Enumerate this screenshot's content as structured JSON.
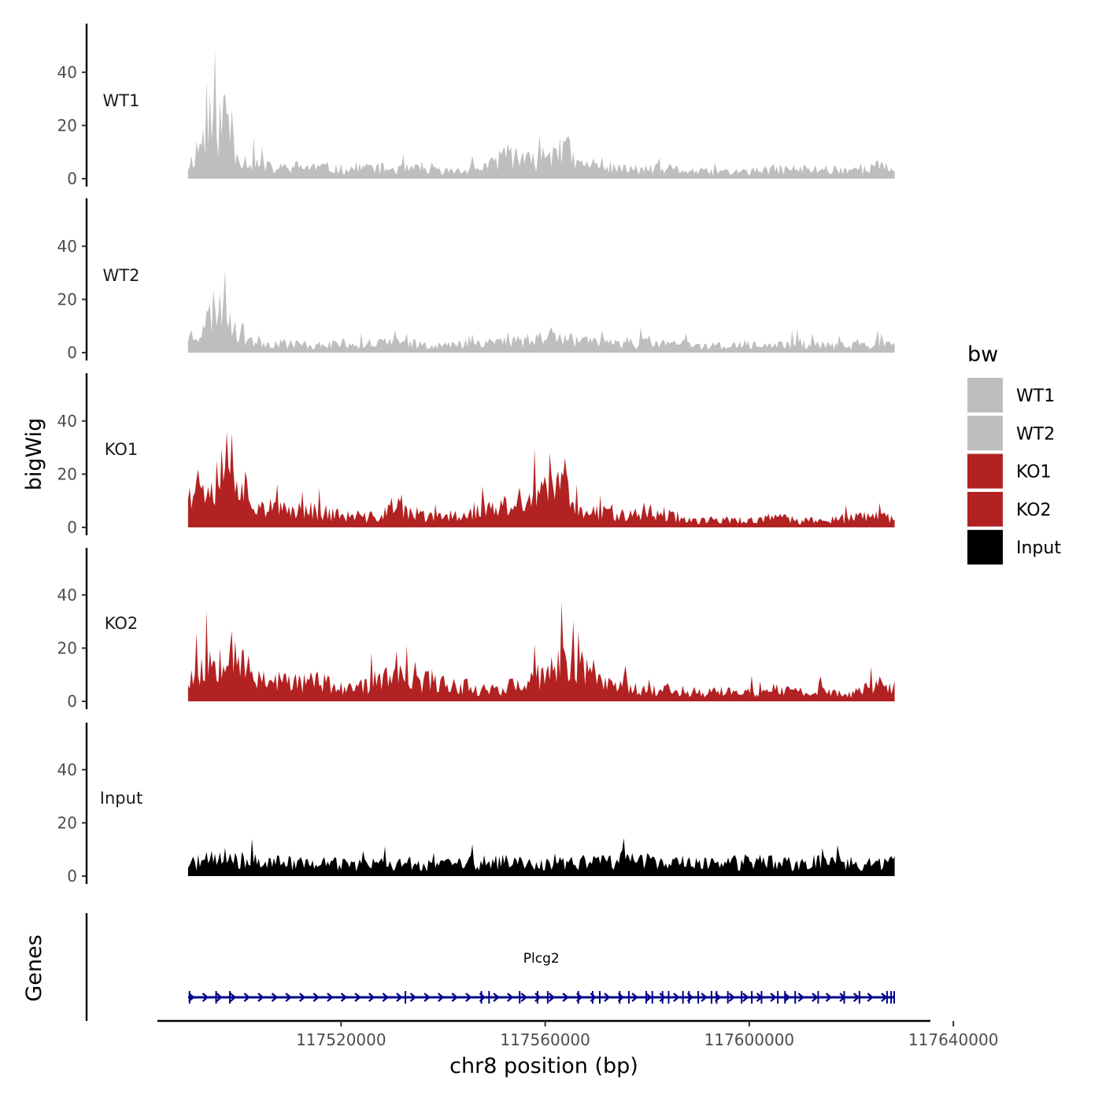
{
  "chart_data": {
    "type": "area",
    "title": "",
    "ylabel": "bigWig",
    "genes_label": "Genes",
    "xlabel": "chr8 position (bp)",
    "xlim": [
      117484000,
      117635500
    ],
    "region": [
      117490000,
      117628500
    ],
    "ylim": [
      0,
      55
    ],
    "yticks": [
      0,
      20,
      40
    ],
    "xticks": [
      117520000,
      117560000,
      117600000,
      117640000
    ],
    "xtick_labels": [
      "117520000",
      "117560000",
      "117600000",
      "117640000"
    ],
    "legend": {
      "title": "bw",
      "position": "right",
      "entries": [
        {
          "label": "WT1",
          "color": "#bebebe"
        },
        {
          "label": "WT2",
          "color": "#bebebe"
        },
        {
          "label": "KO1",
          "color": "#b22222"
        },
        {
          "label": "KO2",
          "color": "#b22222"
        },
        {
          "label": "Input",
          "color": "#000000"
        }
      ]
    },
    "series": [
      {
        "name": "WT1",
        "color": "#bebebe",
        "seed": 11,
        "x": [
          117490000,
          117493000,
          117496000,
          117497500,
          117499000,
          117501000,
          117504000,
          117507000,
          117510000,
          117515000,
          117520000,
          117525000,
          117530000,
          117535000,
          117540000,
          117545000,
          117550000,
          117552000,
          117555000,
          117558000,
          117561000,
          117564000,
          117566000,
          117570000,
          117575000,
          117580000,
          117585000,
          117590000,
          117595000,
          117600000,
          117605000,
          117610000,
          117615000,
          117620000,
          117625000,
          117628500
        ],
        "y": [
          5,
          18,
          22,
          30,
          14,
          8,
          6,
          4,
          5,
          5,
          4,
          5,
          4,
          4,
          3,
          4,
          6,
          12,
          8,
          7,
          12,
          14,
          6,
          6,
          4,
          4,
          4,
          3,
          3,
          3,
          4,
          4,
          4,
          4,
          5,
          4
        ]
      },
      {
        "name": "WT2",
        "color": "#bebebe",
        "seed": 23,
        "x": [
          117490000,
          117493000,
          117495000,
          117497000,
          117498500,
          117500000,
          117503000,
          117506000,
          117510000,
          117515000,
          117520000,
          117525000,
          117530000,
          117535000,
          117540000,
          117545000,
          117550000,
          117555000,
          117560000,
          117563000,
          117566000,
          117570000,
          117575000,
          117580000,
          117585000,
          117590000,
          117595000,
          117600000,
          117605000,
          117610000,
          117615000,
          117620000,
          117625000,
          117628500
        ],
        "y": [
          7,
          10,
          19,
          24,
          15,
          9,
          5,
          4,
          4,
          3,
          4,
          4,
          4,
          4,
          3,
          4,
          5,
          5,
          7,
          9,
          5,
          4,
          5,
          4,
          4,
          3,
          3,
          3,
          3,
          4,
          3,
          3,
          4,
          3
        ]
      },
      {
        "name": "KO1",
        "color": "#b22222",
        "seed": 37,
        "x": [
          117490000,
          117493000,
          117495000,
          117497000,
          117498000,
          117500000,
          117502000,
          117505000,
          117508000,
          117512000,
          117516000,
          117520000,
          117524000,
          117528000,
          117530000,
          117534000,
          117538000,
          117542000,
          117546000,
          117550000,
          117553000,
          117556000,
          117559000,
          117562000,
          117565000,
          117568000,
          117572000,
          117576000,
          117580000,
          117585000,
          117590000,
          117595000,
          117600000,
          117605000,
          117610000,
          117615000,
          117620000,
          117625000,
          117628500
        ],
        "y": [
          17,
          20,
          22,
          26,
          34,
          22,
          14,
          9,
          7,
          8,
          7,
          5,
          4,
          5,
          9,
          6,
          4,
          5,
          7,
          8,
          9,
          12,
          13,
          18,
          16,
          6,
          7,
          6,
          7,
          5,
          3,
          3,
          3,
          4,
          3,
          3,
          4,
          5,
          3
        ]
      },
      {
        "name": "KO2",
        "color": "#b22222",
        "seed": 53,
        "x": [
          117490000,
          117493000,
          117495000,
          117497000,
          117498000,
          117500000,
          117502000,
          117505000,
          117510000,
          117515000,
          117520000,
          117523000,
          117527000,
          117530000,
          117534000,
          117538000,
          117542000,
          117546000,
          117550000,
          117553000,
          117556000,
          117559000,
          117562000,
          117565000,
          117568000,
          117572000,
          117576000,
          117580000,
          117585000,
          117590000,
          117595000,
          117600000,
          117605000,
          117610000,
          117615000,
          117620000,
          117622000,
          117625000,
          117628500
        ],
        "y": [
          10,
          14,
          18,
          22,
          31,
          20,
          12,
          10,
          8,
          9,
          5,
          5,
          9,
          11,
          8,
          9,
          7,
          6,
          5,
          7,
          6,
          11,
          14,
          18,
          15,
          8,
          7,
          5,
          5,
          4,
          4,
          4,
          5,
          4,
          4,
          3,
          5,
          7,
          6
        ]
      },
      {
        "name": "Input",
        "color": "#000000",
        "seed": 71,
        "x": [
          117490000,
          117497000,
          117500000,
          117510000,
          117520000,
          117530000,
          117540000,
          117550000,
          117560000,
          117570000,
          117575000,
          117580000,
          117590000,
          117600000,
          117610000,
          117615000,
          117620000,
          117628500
        ],
        "y": [
          5,
          8,
          6,
          6,
          5,
          5,
          5,
          6,
          5,
          6,
          7,
          6,
          5,
          6,
          5,
          7,
          5,
          6
        ]
      }
    ],
    "genes": [
      {
        "name": "Plcg2",
        "start": 117490000,
        "end": 117628500,
        "strand": "+",
        "color": "#00008b",
        "exons": [
          117490300,
          117495500,
          117498200,
          117532600,
          117547500,
          117549000,
          117555000,
          117558500,
          117560500,
          117566500,
          117569300,
          117570700,
          117574600,
          117576400,
          117579800,
          117581000,
          117583000,
          117584200,
          117587000,
          117588200,
          117590000,
          117592600,
          117593600,
          117595800,
          117598500,
          117600500,
          117602400,
          117605600,
          117607000,
          117609000,
          117613500,
          117618600,
          117621600,
          117627000,
          117627800,
          117628400
        ]
      }
    ]
  }
}
